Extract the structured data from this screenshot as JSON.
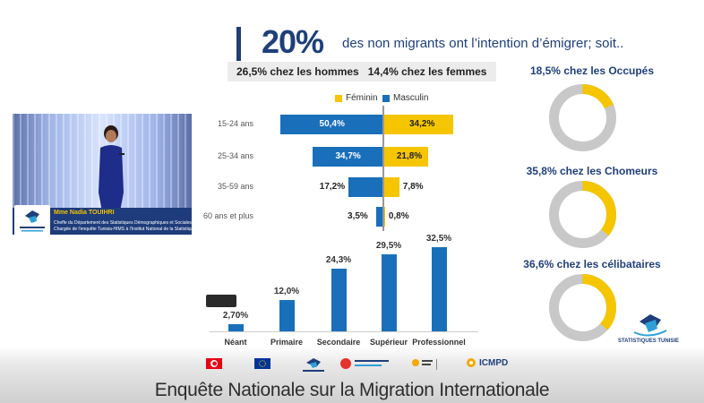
{
  "headline": {
    "big": "20%",
    "text": "des non migrants ont l’intention d’émigrer; soit.."
  },
  "gender_summary": {
    "hommes": "26,5% chez les hommes",
    "femmes": "14,4% chez les femmes"
  },
  "chart_data": [
    {
      "type": "bar",
      "orientation": "horizontal-diverging",
      "categories": [
        "15-24 ans",
        "25-34 ans",
        "35-59 ans",
        "60 ans et plus"
      ],
      "series": [
        {
          "name": "Masculin",
          "values": [
            50.4,
            34.7,
            17.2,
            3.5
          ],
          "labels": [
            "50,4%",
            "34,7%",
            "17,2%",
            "3,5%"
          ],
          "color": "#1a6fba"
        },
        {
          "name": "Féminin",
          "values": [
            34.2,
            21.8,
            7.8,
            0.8
          ],
          "labels": [
            "34,2%",
            "21,8%",
            "7,8%",
            "0,8%"
          ],
          "color": "#f5c500"
        }
      ],
      "legend_placement": "top"
    },
    {
      "type": "bar",
      "categories": [
        "Néant",
        "Primaire",
        "Secondaire",
        "Supérieur",
        "Professionnel"
      ],
      "values": [
        2.7,
        12.0,
        24.3,
        29.5,
        32.5
      ],
      "labels": [
        "2,70%",
        "12,0%",
        "24,3%",
        "29,5%",
        "32,5%"
      ],
      "color": "#1a6fba",
      "ylim": [
        0,
        35
      ]
    },
    {
      "type": "pie",
      "subtype": "donut",
      "items": [
        {
          "title": "18,5% chez les Occupés",
          "value": 18.5
        },
        {
          "title": "35,8% chez les Chomeurs",
          "value": 35.8
        },
        {
          "title": "36,6% chez les célibataires",
          "value": 36.6
        }
      ],
      "colors": {
        "filled": "#f5c500",
        "rest": "#c8c8c8"
      }
    }
  ],
  "video": {
    "speaker_name": "Mme Nadia TOUIHRI",
    "role_line1": "Cheffe du Département des Statistiques Démographiques et Sociales",
    "role_line2": "Chargée de l'enquête Tunisia-HIMS à l'Institut National de la Statistique"
  },
  "ins_logo_text": "STATISTIQUES TUNISIE",
  "partners": [
    "",
    "",
    "",
    "",
    "",
    "ICMPD"
  ],
  "footer_title": "Enquête Nationale sur la Migration Internationale",
  "colors": {
    "blue": "#1a6fba",
    "yellow": "#f5c500",
    "navy": "#1f3f7a",
    "grey": "#c8c8c8"
  }
}
